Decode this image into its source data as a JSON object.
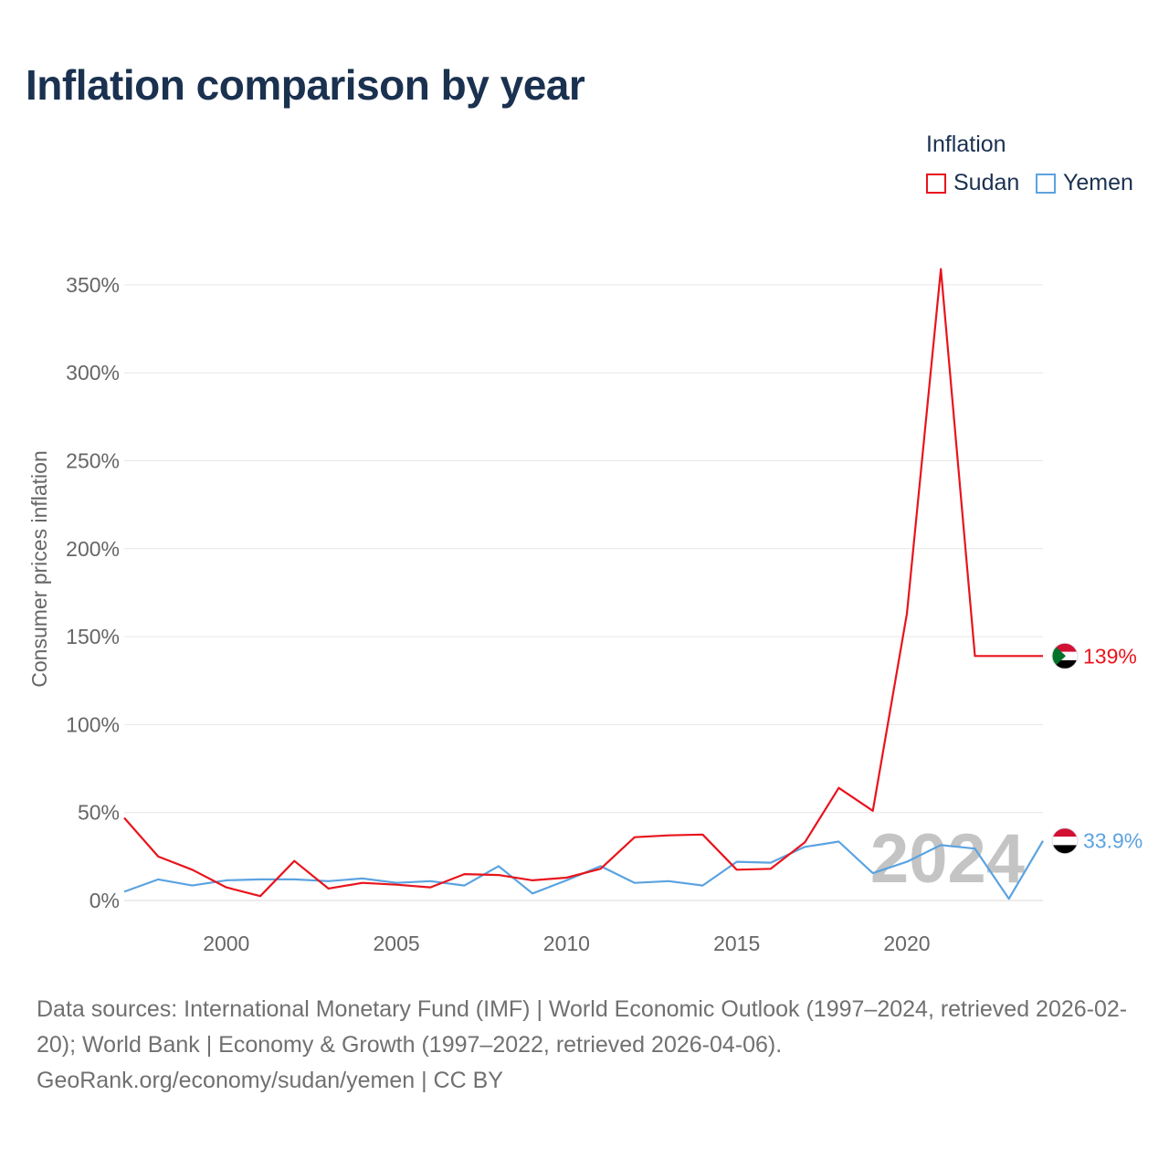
{
  "title": "Inflation comparison by year",
  "legend": {
    "title": "Inflation",
    "items": [
      {
        "label": "Sudan",
        "color": "#e8141c"
      },
      {
        "label": "Yemen",
        "color": "#5ba3e0"
      }
    ]
  },
  "chart_data": {
    "type": "line",
    "title": "Inflation comparison by year",
    "xlabel": "",
    "ylabel": "Consumer prices inflation",
    "xlim": [
      1997,
      2024
    ],
    "ylim": [
      0,
      360
    ],
    "x_ticks": [
      2000,
      2005,
      2010,
      2015,
      2020
    ],
    "y_ticks": [
      0,
      50,
      100,
      150,
      200,
      250,
      300,
      350
    ],
    "y_tick_labels": [
      "0%",
      "50%",
      "100%",
      "150%",
      "200%",
      "250%",
      "300%",
      "350%"
    ],
    "year_watermark": "2024",
    "grid": true,
    "x": [
      1997,
      1998,
      1999,
      2000,
      2001,
      2002,
      2003,
      2004,
      2005,
      2006,
      2007,
      2008,
      2009,
      2010,
      2011,
      2012,
      2013,
      2014,
      2015,
      2016,
      2017,
      2018,
      2019,
      2020,
      2021,
      2022,
      2023,
      2024
    ],
    "series": [
      {
        "name": "Sudan",
        "color": "#e8141c",
        "end_label": "139%",
        "flag": "sudan-flag-icon",
        "values": [
          47.0,
          25.0,
          17.5,
          7.5,
          2.5,
          22.5,
          6.8,
          10.0,
          9.0,
          7.5,
          15.0,
          14.5,
          11.5,
          13.0,
          18.0,
          36.0,
          37.0,
          37.5,
          17.5,
          18.0,
          33.0,
          64.0,
          51.0,
          163.0,
          359.0,
          139.0,
          139.0,
          139.0
        ]
      },
      {
        "name": "Yemen",
        "color": "#5ba3e0",
        "end_label": "33.9%",
        "flag": "yemen-flag-icon",
        "values": [
          5.0,
          12.0,
          8.5,
          11.5,
          12.0,
          12.0,
          11.0,
          12.5,
          10.0,
          11.0,
          8.5,
          19.5,
          4.0,
          11.5,
          19.5,
          10.0,
          11.0,
          8.5,
          22.0,
          21.5,
          30.5,
          33.5,
          15.5,
          22.0,
          31.5,
          29.5,
          1.0,
          33.9
        ]
      }
    ]
  },
  "footer": {
    "line1": "Data sources: International Monetary Fund (IMF) | World Economic Outlook (1997–2024, retrieved 2026-02-20); World Bank | Economy & Growth (1997–2022, retrieved 2026-04-06).",
    "line2": "GeoRank.org/economy/sudan/yemen | CC BY"
  }
}
